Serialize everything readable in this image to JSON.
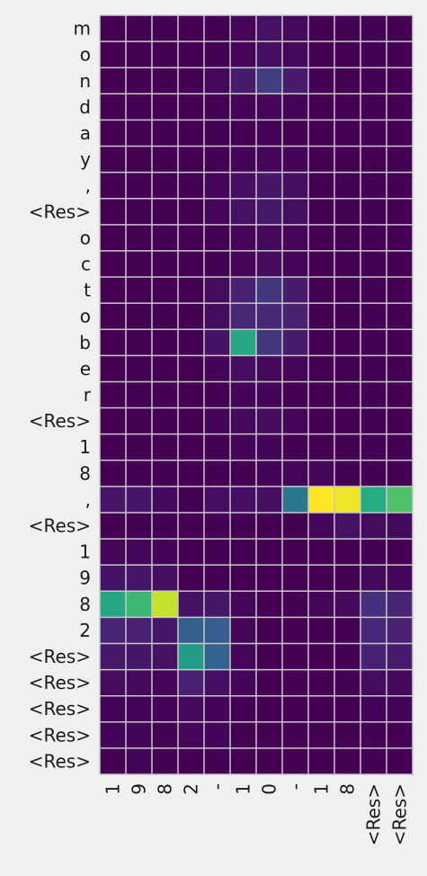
{
  "chart_data": {
    "type": "heatmap",
    "title": "",
    "xlabel": "",
    "ylabel": "",
    "x_tick_labels": [
      "1",
      "9",
      "8",
      "2",
      "-",
      "1",
      "0",
      "-",
      "1",
      "8",
      "<Res>",
      "<Res>"
    ],
    "y_tick_labels": [
      "m",
      "o",
      "n",
      "d",
      "a",
      "y",
      ",",
      "<Res>",
      "o",
      "c",
      "t",
      "o",
      "b",
      "e",
      "r",
      "<Res>",
      "1",
      "8",
      ",",
      "<Res>",
      "1",
      "9",
      "8",
      "2",
      "<Res>",
      "<Res>",
      "<Res>",
      "<Res>",
      "<Res>"
    ],
    "colormap": "viridis",
    "value_range": [
      0,
      1
    ],
    "grid": true,
    "grid_color": "#c8c8c8",
    "values": [
      [
        0,
        0,
        0,
        0,
        0,
        0.02,
        0.06,
        0.03,
        0,
        0,
        0,
        0
      ],
      [
        0,
        0,
        0,
        0,
        0,
        0.02,
        0.05,
        0.03,
        0,
        0,
        0,
        0
      ],
      [
        0,
        0,
        0,
        0,
        0.03,
        0.1,
        0.2,
        0.1,
        0,
        0,
        0,
        0
      ],
      [
        0,
        0,
        0,
        0,
        0,
        0.01,
        0.02,
        0.01,
        0,
        0,
        0,
        0
      ],
      [
        0,
        0,
        0,
        0,
        0,
        0,
        0.01,
        0,
        0,
        0,
        0,
        0
      ],
      [
        0,
        0,
        0,
        0,
        0,
        0.01,
        0.02,
        0.01,
        0,
        0,
        0,
        0
      ],
      [
        0,
        0,
        0,
        0,
        0.02,
        0.05,
        0.08,
        0.05,
        0,
        0,
        0,
        0
      ],
      [
        0,
        0,
        0,
        0,
        0.02,
        0.06,
        0.09,
        0.05,
        0,
        0,
        0,
        0
      ],
      [
        0,
        0,
        0,
        0,
        0,
        0.02,
        0.03,
        0.02,
        0,
        0,
        0,
        0
      ],
      [
        0,
        0,
        0,
        0,
        0,
        0.02,
        0.04,
        0.02,
        0,
        0,
        0,
        0
      ],
      [
        0,
        0,
        0,
        0,
        0.04,
        0.12,
        0.18,
        0.1,
        0,
        0,
        0,
        0
      ],
      [
        0,
        0,
        0,
        0,
        0.04,
        0.14,
        0.14,
        0.12,
        0,
        0,
        0,
        0
      ],
      [
        0,
        0,
        0,
        0,
        0.07,
        0.6,
        0.18,
        0.1,
        0,
        0,
        0,
        0
      ],
      [
        0,
        0,
        0,
        0,
        0.01,
        0.05,
        0.03,
        0.02,
        0,
        0,
        0,
        0
      ],
      [
        0,
        0,
        0,
        0,
        0,
        0.01,
        0.01,
        0,
        0,
        0,
        0,
        0
      ],
      [
        0,
        0,
        0,
        0,
        0.01,
        0.03,
        0.04,
        0.02,
        0,
        0,
        0,
        0
      ],
      [
        0,
        0,
        0,
        0,
        0,
        0.01,
        0.01,
        0,
        0,
        0,
        0,
        0
      ],
      [
        0,
        0,
        0,
        0,
        0,
        0,
        0.01,
        0.02,
        0.02,
        0,
        0,
        0
      ],
      [
        0.08,
        0.08,
        0.03,
        0,
        0.05,
        0.05,
        0.05,
        0.4,
        1.0,
        0.98,
        0.62,
        0.72
      ],
      [
        0,
        0,
        0,
        0,
        0,
        0,
        0,
        0,
        0.02,
        0.06,
        0.04,
        0.03
      ],
      [
        0.02,
        0.02,
        0.01,
        0,
        0,
        0,
        0,
        0,
        0,
        0,
        0,
        0
      ],
      [
        0.07,
        0.08,
        0.05,
        0,
        0,
        0,
        0,
        0,
        0,
        0,
        0.03,
        0.02
      ],
      [
        0.6,
        0.68,
        0.92,
        0.06,
        0.08,
        0.02,
        0,
        0,
        0.02,
        0.03,
        0.16,
        0.13
      ],
      [
        0.13,
        0.12,
        0.08,
        0.3,
        0.3,
        0.02,
        0,
        0,
        0,
        0,
        0.14,
        0.12
      ],
      [
        0.09,
        0.08,
        0.06,
        0.55,
        0.32,
        0.02,
        0,
        0,
        0,
        0,
        0.12,
        0.1
      ],
      [
        0.04,
        0.03,
        0.02,
        0.12,
        0.05,
        0.01,
        0,
        0,
        0,
        0,
        0.04,
        0.03
      ],
      [
        0.01,
        0.01,
        0.01,
        0.03,
        0.01,
        0,
        0,
        0,
        0,
        0,
        0.01,
        0.01
      ],
      [
        0.01,
        0.01,
        0,
        0.02,
        0.01,
        0,
        0,
        0,
        0,
        0,
        0,
        0
      ],
      [
        0,
        0.01,
        0,
        0,
        0,
        0,
        0,
        0,
        0,
        0,
        0,
        0
      ]
    ]
  }
}
